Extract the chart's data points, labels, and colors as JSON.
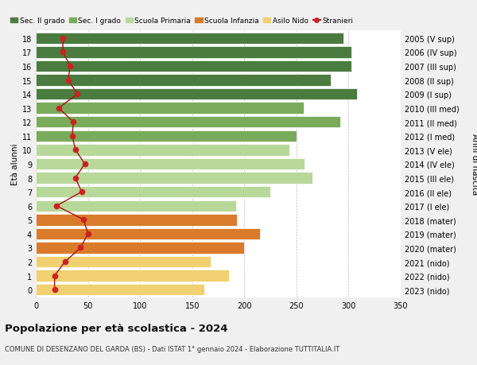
{
  "ages": [
    18,
    17,
    16,
    15,
    14,
    13,
    12,
    11,
    10,
    9,
    8,
    7,
    6,
    5,
    4,
    3,
    2,
    1,
    0
  ],
  "years": [
    "2005 (V sup)",
    "2006 (IV sup)",
    "2007 (III sup)",
    "2008 (II sup)",
    "2009 (I sup)",
    "2010 (III med)",
    "2011 (II med)",
    "2012 (I med)",
    "2013 (V ele)",
    "2014 (IV ele)",
    "2015 (III ele)",
    "2016 (II ele)",
    "2017 (I ele)",
    "2018 (mater)",
    "2019 (mater)",
    "2020 (mater)",
    "2021 (nido)",
    "2022 (nido)",
    "2023 (nido)"
  ],
  "values": [
    295,
    303,
    303,
    283,
    308,
    257,
    292,
    250,
    243,
    258,
    265,
    225,
    192,
    193,
    215,
    200,
    168,
    185,
    162
  ],
  "stranieri": [
    26,
    26,
    33,
    31,
    40,
    22,
    36,
    35,
    38,
    47,
    38,
    44,
    20,
    46,
    50,
    43,
    28,
    18,
    18
  ],
  "bar_colors": [
    "#4a7c3f",
    "#4a7c3f",
    "#4a7c3f",
    "#4a7c3f",
    "#4a7c3f",
    "#7aab5a",
    "#7aab5a",
    "#7aab5a",
    "#b8d89a",
    "#b8d89a",
    "#b8d89a",
    "#b8d89a",
    "#b8d89a",
    "#d97b2a",
    "#d97b2a",
    "#d97b2a",
    "#f0d070",
    "#f0d070",
    "#f0d070"
  ],
  "legend_labels": [
    "Sec. II grado",
    "Sec. I grado",
    "Scuola Primaria",
    "Scuola Infanzia",
    "Asilo Nido",
    "Stranieri"
  ],
  "legend_colors": [
    "#4a7c3f",
    "#7aab5a",
    "#b8d89a",
    "#d97b2a",
    "#f0d070",
    "#cc2222"
  ],
  "title": "Popolazione per età scolastica - 2024",
  "subtitle": "COMUNE DI DESENZANO DEL GARDA (BS) - Dati ISTAT 1° gennaio 2024 - Elaborazione TUTTITALIA.IT",
  "xlabel_left": "Età alunni",
  "xlabel_right": "Anni di nascita",
  "xlim": [
    0,
    350
  ],
  "xticks": [
    0,
    50,
    100,
    150,
    200,
    250,
    300,
    350
  ],
  "stranieri_color": "#cc2222",
  "stranieri_line_color": "#aa1111",
  "bg_color": "#f0f0f0",
  "plot_bg_color": "#ffffff"
}
